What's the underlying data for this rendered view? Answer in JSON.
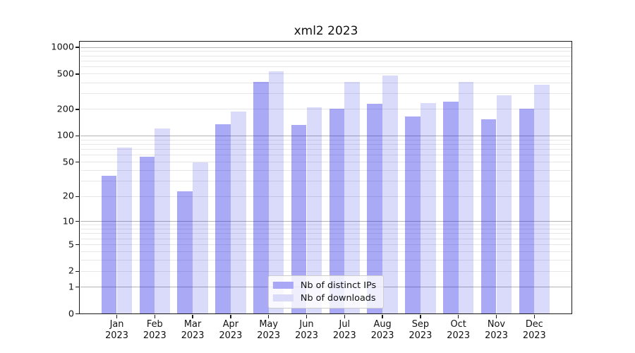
{
  "title": "xml2 2023",
  "chart_data": {
    "type": "bar",
    "title": "xml2 2023",
    "categories": [
      "Jan 2023",
      "Feb 2023",
      "Mar 2023",
      "Apr 2023",
      "May 2023",
      "Jun 2023",
      "Jul 2023",
      "Aug 2023",
      "Sep 2023",
      "Oct 2023",
      "Nov 2023",
      "Dec 2023"
    ],
    "x_tick_months": [
      "Jan",
      "Feb",
      "Mar",
      "Apr",
      "May",
      "Jun",
      "Jul",
      "Aug",
      "Sep",
      "Oct",
      "Nov",
      "Dec"
    ],
    "x_tick_year": "2023",
    "series": [
      {
        "name": "Nb of distinct IPs",
        "color": "rgba(10,10,230,0.35)",
        "color_on_white": "#a8a8f6",
        "values": [
          35,
          58,
          23,
          135,
          405,
          132,
          202,
          230,
          165,
          242,
          153,
          202
        ]
      },
      {
        "name": "Nb of downloads",
        "color": "rgba(10,10,230,0.15)",
        "color_on_white": "#dadaf9",
        "values": [
          73,
          122,
          50,
          190,
          540,
          210,
          410,
          480,
          235,
          410,
          287,
          378
        ]
      }
    ],
    "yscale": "log1p",
    "ylabel": "",
    "xlabel": "",
    "yticks": [
      0,
      1,
      2,
      5,
      10,
      20,
      50,
      100,
      200,
      500,
      1000
    ],
    "major_yticks": [
      1,
      10,
      100,
      1000
    ],
    "minor_gridlines": [
      3,
      4,
      6,
      7,
      8,
      9,
      30,
      40,
      60,
      70,
      80,
      90,
      300,
      400,
      600,
      700,
      800,
      900
    ],
    "ylim": [
      0,
      1150
    ],
    "grid": true,
    "legend_position": "lower center"
  },
  "colors": {
    "major_grid": "#b5b5b5",
    "minor_grid": "#e7e7e7",
    "axis": "#1a1a1a",
    "text": "#111111",
    "background": "#ffffff"
  }
}
